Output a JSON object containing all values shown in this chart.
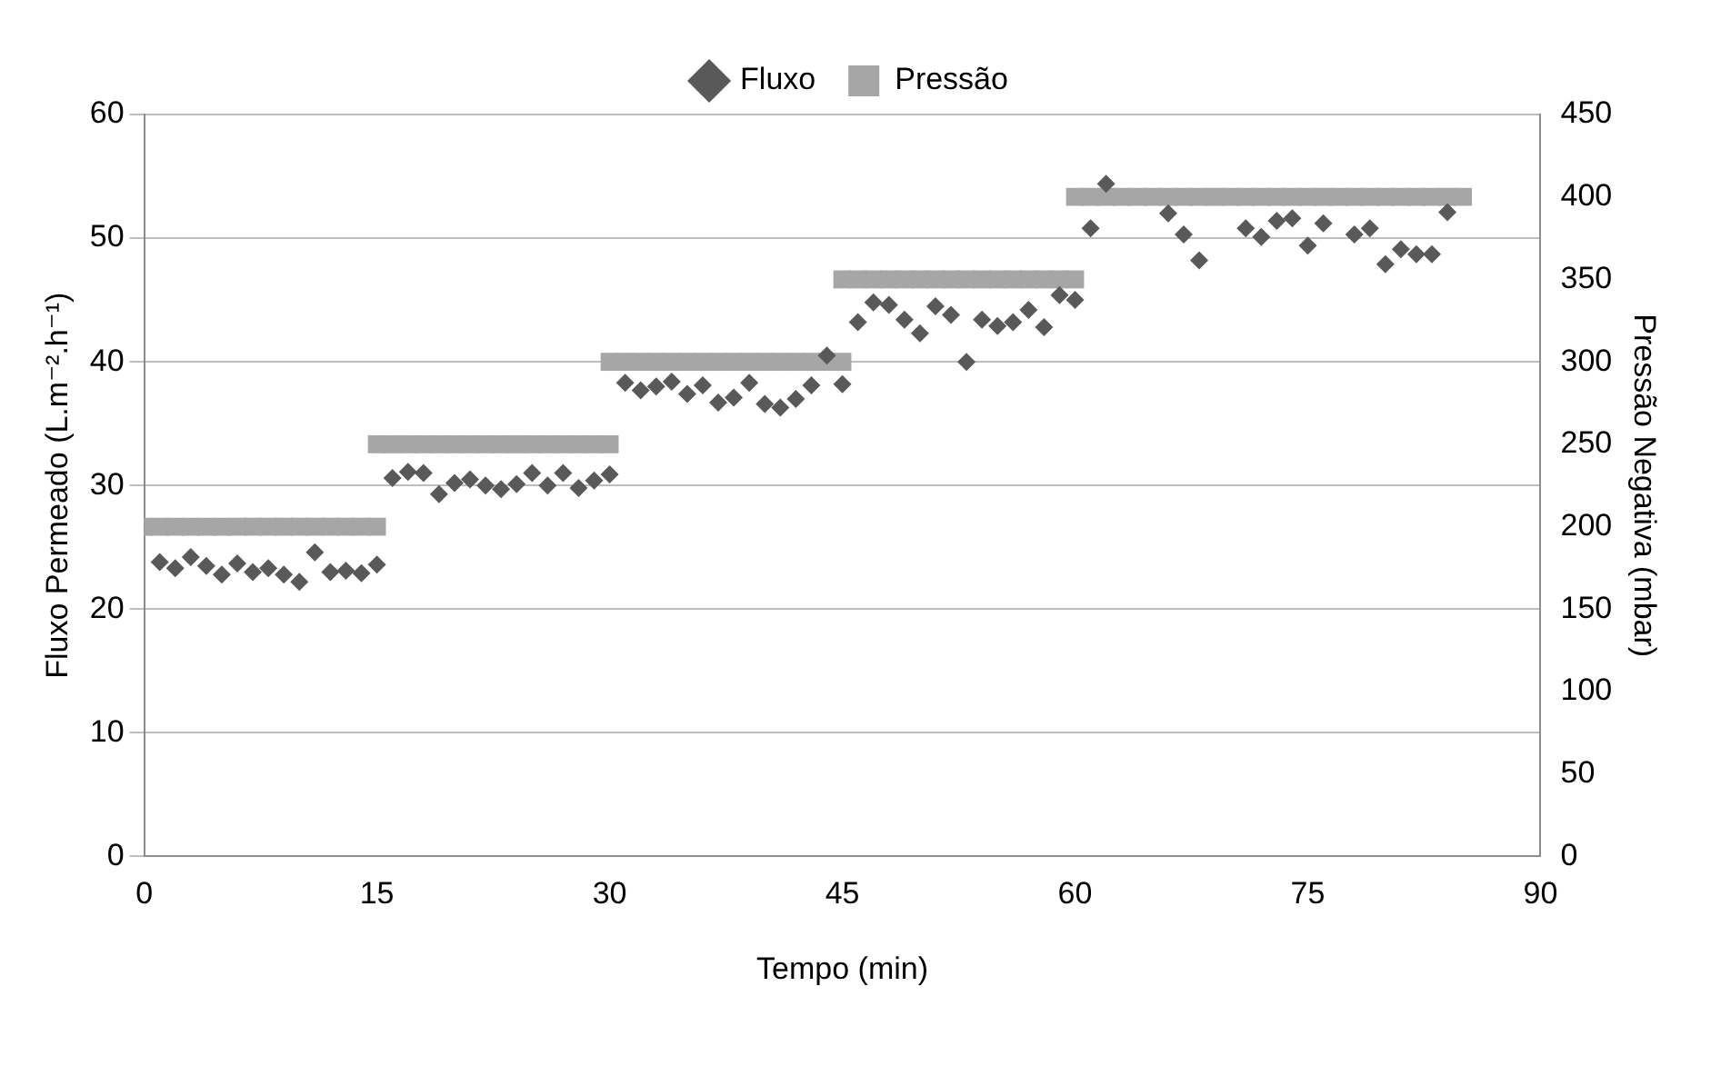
{
  "chart_data": {
    "type": "scatter",
    "xlabel": "Tempo (min)",
    "ylabel": "Fluxo Permeado (L.m⁻².h⁻¹)",
    "y2label": "Pressão Negativa (mbar)",
    "xlim": [
      0,
      90
    ],
    "xticks": [
      0,
      15,
      30,
      45,
      60,
      75,
      90
    ],
    "ylim": [
      0,
      60
    ],
    "yticks": [
      0,
      10,
      20,
      30,
      40,
      50,
      60
    ],
    "y2lim": [
      0,
      450
    ],
    "y2ticks": [
      0,
      50,
      100,
      150,
      200,
      250,
      300,
      350,
      400,
      450
    ],
    "grid": "y",
    "legend": "top",
    "series": [
      {
        "name": "Fluxo",
        "color": "#595959",
        "marker": "diamond",
        "x": [
          1,
          2,
          3,
          4,
          5,
          6,
          7,
          8,
          9,
          10,
          11,
          12,
          13,
          14,
          15,
          16,
          17,
          18,
          19,
          20,
          21,
          22,
          23,
          24,
          25,
          26,
          27,
          28,
          29,
          30,
          31,
          32,
          33,
          34,
          35,
          36,
          37,
          38,
          39,
          40,
          41,
          42,
          43,
          44,
          45,
          46,
          47,
          48,
          49,
          50,
          51,
          52,
          53,
          54,
          55,
          56,
          57,
          58,
          59,
          60,
          61,
          62,
          66,
          67,
          68,
          71,
          72,
          73,
          74,
          75,
          76,
          78,
          79,
          80,
          81,
          82,
          83,
          84
        ],
        "values": [
          23.8,
          23.3,
          24.2,
          23.5,
          22.8,
          23.7,
          23.0,
          23.3,
          22.8,
          22.2,
          24.6,
          23.0,
          23.1,
          22.9,
          23.6,
          30.6,
          31.1,
          31.0,
          29.3,
          30.2,
          30.5,
          30.0,
          29.7,
          30.1,
          31.0,
          30.0,
          31.0,
          29.8,
          30.4,
          30.9,
          38.3,
          37.7,
          38.0,
          38.4,
          37.4,
          38.1,
          36.7,
          37.1,
          38.3,
          36.6,
          36.3,
          37.0,
          38.1,
          40.5,
          38.2,
          43.2,
          44.8,
          44.6,
          43.4,
          42.3,
          44.5,
          43.8,
          40.0,
          43.4,
          42.9,
          43.2,
          44.2,
          42.8,
          45.4,
          45.0,
          50.8,
          54.4,
          52.0,
          50.3,
          48.2,
          50.8,
          50.1,
          51.4,
          51.6,
          49.4,
          51.2,
          50.3,
          50.8,
          47.9,
          49.1,
          48.7,
          48.7,
          52.1
        ]
      },
      {
        "name": "Pressão",
        "color": "#a6a6a6",
        "marker": "square",
        "axis": "y2",
        "x": [
          0,
          1,
          2,
          3,
          4,
          5,
          6,
          7,
          8,
          9,
          10,
          11,
          12,
          13,
          14,
          15,
          15,
          16,
          17,
          18,
          19,
          20,
          21,
          22,
          23,
          24,
          25,
          26,
          27,
          28,
          29,
          30,
          30,
          31,
          32,
          33,
          34,
          35,
          36,
          37,
          38,
          39,
          40,
          41,
          42,
          43,
          44,
          45,
          45,
          46,
          47,
          48,
          49,
          50,
          51,
          52,
          53,
          54,
          55,
          56,
          57,
          58,
          59,
          60,
          60,
          61,
          62,
          63,
          64,
          65,
          66,
          67,
          68,
          69,
          70,
          71,
          72,
          73,
          74,
          75,
          76,
          77,
          78,
          79,
          80,
          81,
          82,
          83,
          84,
          85
        ],
        "values": [
          200,
          200,
          200,
          200,
          200,
          200,
          200,
          200,
          200,
          200,
          200,
          200,
          200,
          200,
          200,
          200,
          250,
          250,
          250,
          250,
          250,
          250,
          250,
          250,
          250,
          250,
          250,
          250,
          250,
          250,
          250,
          250,
          300,
          300,
          300,
          300,
          300,
          300,
          300,
          300,
          300,
          300,
          300,
          300,
          300,
          300,
          300,
          300,
          350,
          350,
          350,
          350,
          350,
          350,
          350,
          350,
          350,
          350,
          350,
          350,
          350,
          350,
          350,
          350,
          400,
          400,
          400,
          400,
          400,
          400,
          400,
          400,
          400,
          400,
          400,
          400,
          400,
          400,
          400,
          400,
          400,
          400,
          400,
          400,
          400,
          400,
          400,
          400,
          400,
          400
        ]
      }
    ]
  }
}
